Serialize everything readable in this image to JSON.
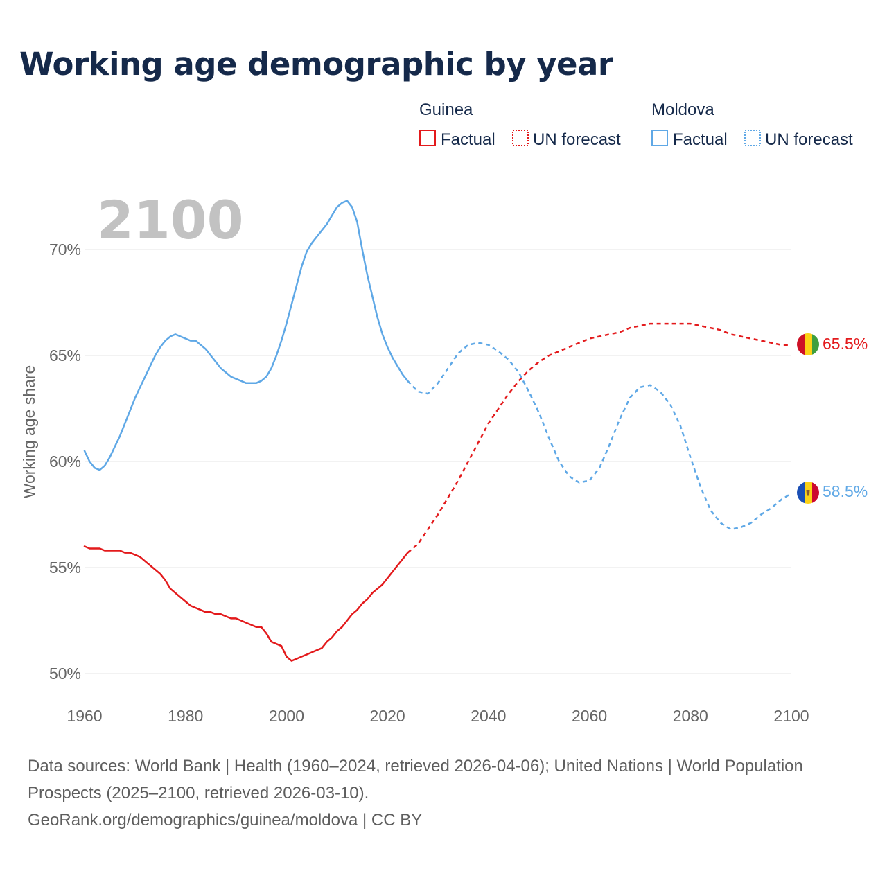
{
  "title": "Working age demographic by year",
  "year_watermark": "2100",
  "legend": {
    "groups": [
      {
        "country": "Guinea",
        "items": [
          "Factual",
          "UN forecast"
        ]
      },
      {
        "country": "Moldova",
        "items": [
          "Factual",
          "UN forecast"
        ]
      }
    ]
  },
  "colors": {
    "guinea": "#e31a1c",
    "moldova": "#5fa8e6",
    "grid": "#e6e6e6",
    "axis_text": "#666666",
    "title": "#15294a"
  },
  "footer": {
    "sources": "Data sources: World Bank | Health (1960–2024, retrieved 2026-04-06); United Nations | World Population Prospects (2025–2100, retrieved 2026-03-10).",
    "credit": "GeoRank.org/demographics/guinea/moldova | CC BY"
  },
  "chart_data": {
    "type": "line",
    "title": "Working age demographic by year",
    "xlabel": "",
    "ylabel": "Working age share",
    "xlim": [
      1960,
      2100
    ],
    "ylim": [
      50,
      72
    ],
    "x_ticks": [
      1960,
      1980,
      2000,
      2020,
      2040,
      2060,
      2080,
      2100
    ],
    "y_ticks": [
      50,
      55,
      60,
      65,
      70
    ],
    "y_tick_labels": [
      "50%",
      "55%",
      "60%",
      "65%",
      "70%"
    ],
    "grid": true,
    "series": [
      {
        "name": "Guinea",
        "end_label": "65.5%",
        "flag": "guinea-flag",
        "factual": {
          "x": [
            1960,
            1961,
            1962,
            1963,
            1964,
            1965,
            1966,
            1967,
            1968,
            1969,
            1970,
            1971,
            1972,
            1973,
            1974,
            1975,
            1976,
            1977,
            1978,
            1979,
            1980,
            1981,
            1982,
            1983,
            1984,
            1985,
            1986,
            1987,
            1988,
            1989,
            1990,
            1991,
            1992,
            1993,
            1994,
            1995,
            1996,
            1997,
            1998,
            1999,
            2000,
            2001,
            2002,
            2003,
            2004,
            2005,
            2006,
            2007,
            2008,
            2009,
            2010,
            2011,
            2012,
            2013,
            2014,
            2015,
            2016,
            2017,
            2018,
            2019,
            2020,
            2021,
            2022,
            2023,
            2024
          ],
          "y": [
            56.0,
            55.9,
            55.9,
            55.9,
            55.8,
            55.8,
            55.8,
            55.8,
            55.7,
            55.7,
            55.6,
            55.5,
            55.3,
            55.1,
            54.9,
            54.7,
            54.4,
            54.0,
            53.8,
            53.6,
            53.4,
            53.2,
            53.1,
            53.0,
            52.9,
            52.9,
            52.8,
            52.8,
            52.7,
            52.6,
            52.6,
            52.5,
            52.4,
            52.3,
            52.2,
            52.2,
            51.9,
            51.5,
            51.4,
            51.3,
            50.8,
            50.6,
            50.7,
            50.8,
            50.9,
            51.0,
            51.1,
            51.2,
            51.5,
            51.7,
            52.0,
            52.2,
            52.5,
            52.8,
            53.0,
            53.3,
            53.5,
            53.8,
            54.0,
            54.2,
            54.5,
            54.8,
            55.1,
            55.4,
            55.7
          ]
        },
        "forecast": {
          "x": [
            2024,
            2026,
            2028,
            2030,
            2032,
            2034,
            2036,
            2038,
            2040,
            2042,
            2044,
            2046,
            2048,
            2050,
            2052,
            2054,
            2056,
            2058,
            2060,
            2062,
            2064,
            2066,
            2068,
            2070,
            2072,
            2074,
            2076,
            2078,
            2080,
            2082,
            2084,
            2086,
            2088,
            2090,
            2092,
            2094,
            2096,
            2098,
            2100
          ],
          "y": [
            55.7,
            56.1,
            56.8,
            57.5,
            58.3,
            59.1,
            60.0,
            60.9,
            61.8,
            62.5,
            63.2,
            63.8,
            64.3,
            64.7,
            65.0,
            65.2,
            65.4,
            65.6,
            65.8,
            65.9,
            66.0,
            66.1,
            66.3,
            66.4,
            66.5,
            66.5,
            66.5,
            66.5,
            66.5,
            66.4,
            66.3,
            66.2,
            66.0,
            65.9,
            65.8,
            65.7,
            65.6,
            65.5,
            65.5
          ]
        }
      },
      {
        "name": "Moldova",
        "end_label": "58.5%",
        "flag": "moldova-flag",
        "factual": {
          "x": [
            1960,
            1961,
            1962,
            1963,
            1964,
            1965,
            1966,
            1967,
            1968,
            1969,
            1970,
            1971,
            1972,
            1973,
            1974,
            1975,
            1976,
            1977,
            1978,
            1979,
            1980,
            1981,
            1982,
            1983,
            1984,
            1985,
            1986,
            1987,
            1988,
            1989,
            1990,
            1991,
            1992,
            1993,
            1994,
            1995,
            1996,
            1997,
            1998,
            1999,
            2000,
            2001,
            2002,
            2003,
            2004,
            2005,
            2006,
            2007,
            2008,
            2009,
            2010,
            2011,
            2012,
            2013,
            2014,
            2015,
            2016,
            2017,
            2018,
            2019,
            2020,
            2021,
            2022,
            2023,
            2024
          ],
          "y": [
            60.5,
            60.0,
            59.7,
            59.6,
            59.8,
            60.2,
            60.7,
            61.2,
            61.8,
            62.4,
            63.0,
            63.5,
            64.0,
            64.5,
            65.0,
            65.4,
            65.7,
            65.9,
            66.0,
            65.9,
            65.8,
            65.7,
            65.7,
            65.5,
            65.3,
            65.0,
            64.7,
            64.4,
            64.2,
            64.0,
            63.9,
            63.8,
            63.7,
            63.7,
            63.7,
            63.8,
            64.0,
            64.4,
            65.0,
            65.7,
            66.5,
            67.4,
            68.3,
            69.2,
            69.9,
            70.3,
            70.6,
            70.9,
            71.2,
            71.6,
            72.0,
            72.2,
            72.3,
            72.0,
            71.3,
            70.0,
            68.8,
            67.8,
            66.8,
            66.0,
            65.4,
            64.9,
            64.5,
            64.1,
            63.8
          ]
        },
        "forecast": {
          "x": [
            2024,
            2026,
            2028,
            2030,
            2032,
            2034,
            2036,
            2038,
            2040,
            2042,
            2044,
            2046,
            2048,
            2050,
            2052,
            2054,
            2056,
            2058,
            2060,
            2062,
            2064,
            2066,
            2068,
            2070,
            2072,
            2074,
            2076,
            2078,
            2080,
            2082,
            2084,
            2086,
            2088,
            2090,
            2092,
            2094,
            2096,
            2098,
            2100
          ],
          "y": [
            63.8,
            63.3,
            63.2,
            63.7,
            64.4,
            65.1,
            65.5,
            65.6,
            65.5,
            65.2,
            64.8,
            64.2,
            63.3,
            62.3,
            61.1,
            60.0,
            59.3,
            59.0,
            59.1,
            59.7,
            60.8,
            62.0,
            63.0,
            63.5,
            63.6,
            63.3,
            62.7,
            61.7,
            60.2,
            58.8,
            57.7,
            57.1,
            56.8,
            56.9,
            57.1,
            57.5,
            57.8,
            58.2,
            58.5
          ]
        }
      }
    ]
  }
}
